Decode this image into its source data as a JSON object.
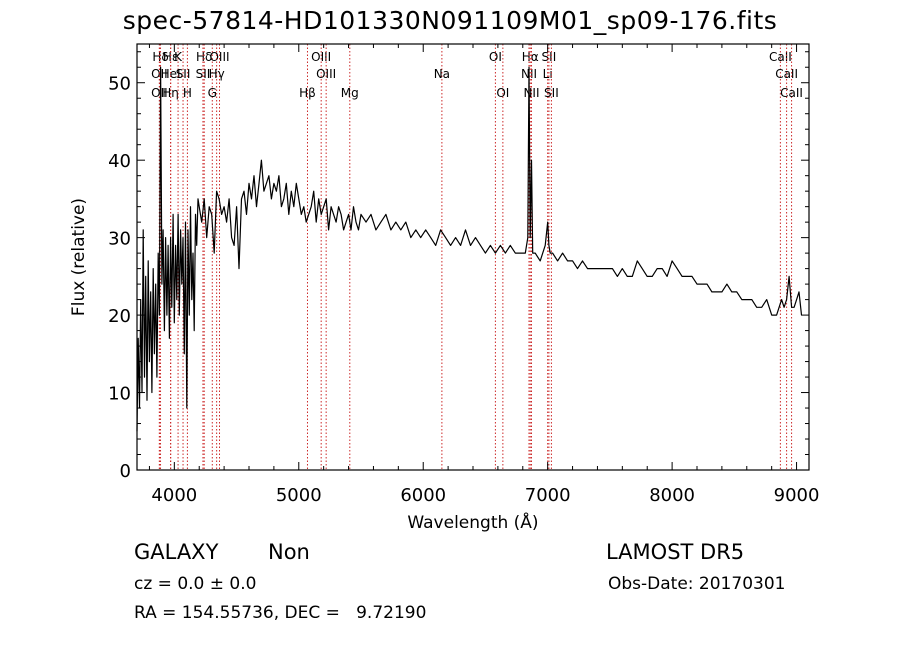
{
  "title": "spec-57814-HD101330N091109M01_sp09-176.fits",
  "info": {
    "object_class": "GALAXY",
    "object_subclass": "Non",
    "survey": "LAMOST DR5",
    "cz": "cz = 0.0 ± 0.0",
    "obs_date": "Obs-Date: 20170301",
    "radec": "RA = 154.55736, DEC =   9.72190"
  },
  "colors": {
    "line": "#000000",
    "marker": "#cc2a2a",
    "axis": "#000000",
    "background": "#ffffff"
  },
  "chart_data": {
    "type": "line",
    "title": "spec-57814-HD101330N091109M01_sp09-176.fits",
    "xlabel": "Wavelength (Å)",
    "ylabel": "Flux (relative)",
    "xlim": [
      3700,
      9100
    ],
    "ylim": [
      0,
      55
    ],
    "xticks": [
      4000,
      5000,
      6000,
      7000,
      8000,
      9000
    ],
    "yticks": [
      0,
      10,
      20,
      30,
      40,
      50
    ],
    "grid": false,
    "series": [
      {
        "x": [
          3700,
          3710,
          3720,
          3730,
          3740,
          3750,
          3760,
          3770,
          3780,
          3790,
          3800,
          3810,
          3820,
          3830,
          3840,
          3850,
          3860,
          3870,
          3880,
          3890,
          3900,
          3910,
          3920,
          3930,
          3940,
          3950,
          3960,
          3970,
          3980,
          3990,
          4000,
          4010,
          4020,
          4030,
          4040,
          4050,
          4060,
          4070,
          4080,
          4090,
          4100,
          4110,
          4120,
          4130,
          4140,
          4150,
          4160,
          4170,
          4180,
          4190,
          4200,
          4220,
          4240,
          4260,
          4280,
          4300,
          4320,
          4340,
          4360,
          4380,
          4400,
          4420,
          4440,
          4460,
          4480,
          4500,
          4520,
          4540,
          4560,
          4580,
          4600,
          4620,
          4640,
          4660,
          4680,
          4700,
          4720,
          4740,
          4760,
          4780,
          4800,
          4820,
          4840,
          4860,
          4880,
          4900,
          4920,
          4940,
          4960,
          4980,
          5000,
          5020,
          5040,
          5060,
          5080,
          5100,
          5120,
          5140,
          5160,
          5180,
          5200,
          5220,
          5240,
          5260,
          5280,
          5300,
          5320,
          5340,
          5360,
          5380,
          5400,
          5420,
          5440,
          5460,
          5480,
          5500,
          5540,
          5580,
          5620,
          5660,
          5700,
          5740,
          5780,
          5820,
          5860,
          5900,
          5940,
          5980,
          6020,
          6060,
          6100,
          6140,
          6180,
          6220,
          6260,
          6300,
          6340,
          6380,
          6420,
          6460,
          6500,
          6540,
          6580,
          6620,
          6660,
          6700,
          6740,
          6780,
          6820,
          6840,
          6850,
          6860,
          6870,
          6880,
          6900,
          6940,
          6980,
          7000,
          7010,
          7020,
          7040,
          7080,
          7120,
          7160,
          7200,
          7240,
          7280,
          7320,
          7360,
          7400,
          7440,
          7480,
          7520,
          7560,
          7600,
          7640,
          7680,
          7720,
          7760,
          7800,
          7840,
          7880,
          7920,
          7960,
          8000,
          8040,
          8080,
          8120,
          8160,
          8200,
          8240,
          8280,
          8320,
          8360,
          8400,
          8440,
          8480,
          8520,
          8560,
          8600,
          8640,
          8680,
          8720,
          8760,
          8800,
          8840,
          8880,
          8900,
          8920,
          8940,
          8960,
          8980,
          9000,
          9020,
          9040
        ],
        "values": [
          5,
          17,
          8,
          22,
          10,
          31,
          12,
          25,
          9,
          27,
          14,
          23,
          10,
          26,
          15,
          24,
          12,
          28,
          20,
          52,
          24,
          31,
          18,
          30,
          20,
          29,
          17,
          30,
          21,
          33,
          19,
          29,
          22,
          33,
          20,
          31,
          24,
          30,
          15,
          32,
          8,
          31,
          20,
          34,
          22,
          28,
          18,
          33,
          29,
          35,
          34,
          32,
          35,
          30,
          34,
          33,
          28,
          36,
          35,
          33,
          34,
          32,
          35,
          30,
          29,
          34,
          26,
          35,
          36,
          33,
          37,
          35,
          38,
          34,
          37,
          40,
          36,
          37,
          38,
          35,
          37,
          36,
          38,
          34,
          35,
          37,
          33,
          36,
          34,
          37,
          35,
          33,
          34,
          32,
          33,
          34,
          36,
          32,
          35,
          33,
          34,
          35,
          31,
          34,
          33,
          32,
          34,
          33,
          31,
          32,
          33,
          31,
          34,
          32,
          31,
          33,
          32,
          33,
          31,
          32,
          33,
          31,
          32,
          31,
          32,
          30,
          31,
          30,
          31,
          30,
          29,
          31,
          30,
          29,
          30,
          29,
          31,
          29,
          30,
          29,
          28,
          29,
          28,
          29,
          28,
          29,
          28,
          28,
          28,
          30,
          52,
          30,
          40,
          28,
          28,
          27,
          29,
          32,
          29,
          28,
          28,
          27,
          28,
          27,
          27,
          26,
          27,
          26,
          26,
          26,
          26,
          26,
          26,
          25,
          26,
          25,
          25,
          27,
          26,
          25,
          25,
          26,
          26,
          25,
          27,
          26,
          25,
          25,
          25,
          24,
          24,
          24,
          23,
          23,
          23,
          24,
          23,
          23,
          22,
          22,
          22,
          21,
          21,
          22,
          20,
          20,
          22,
          21,
          22,
          25,
          21,
          21,
          22,
          23,
          20
        ]
      }
    ],
    "line_markers": [
      {
        "label": "Hδ",
        "x": 3889,
        "row": 0
      },
      {
        "label": "OII",
        "x": 3880,
        "row": 1
      },
      {
        "label": "OII",
        "x": 3880,
        "row": 2
      },
      {
        "label": "Hε",
        "x": 3970,
        "row": 0
      },
      {
        "label": "HeI",
        "x": 3970,
        "row": 1
      },
      {
        "label": "Hη",
        "x": 3970,
        "row": 2
      },
      {
        "label": "K",
        "x": 4030,
        "row": 0
      },
      {
        "label": "SII",
        "x": 4070,
        "row": 1
      },
      {
        "label": "H",
        "x": 4105,
        "row": 2
      },
      {
        "label": "Hδ",
        "x": 4240,
        "row": 0
      },
      {
        "label": "SII",
        "x": 4230,
        "row": 1
      },
      {
        "label": "G",
        "x": 4305,
        "row": 2
      },
      {
        "label": "OIII",
        "x": 4363,
        "row": 0
      },
      {
        "label": "Hγ",
        "x": 4340,
        "row": 1
      },
      {
        "label": "Hβ",
        "x": 5070,
        "row": 2
      },
      {
        "label": "OIII",
        "x": 5180,
        "row": 0
      },
      {
        "label": "OIII",
        "x": 5220,
        "row": 1
      },
      {
        "label": "Mg",
        "x": 5410,
        "row": 2
      },
      {
        "label": "Na",
        "x": 6150,
        "row": 1
      },
      {
        "label": "OI",
        "x": 6580,
        "row": 0
      },
      {
        "label": "OI",
        "x": 6640,
        "row": 2
      },
      {
        "label": "Hα",
        "x": 6860,
        "row": 0
      },
      {
        "label": "NII",
        "x": 6850,
        "row": 1
      },
      {
        "label": "NII",
        "x": 6870,
        "row": 2
      },
      {
        "label": "SII",
        "x": 7010,
        "row": 0
      },
      {
        "label": "Li",
        "x": 7000,
        "row": 1
      },
      {
        "label": "SII",
        "x": 7030,
        "row": 2
      },
      {
        "label": "CaII",
        "x": 8870,
        "row": 0
      },
      {
        "label": "CaII",
        "x": 8920,
        "row": 1
      },
      {
        "label": "CaII",
        "x": 8960,
        "row": 2
      }
    ]
  }
}
